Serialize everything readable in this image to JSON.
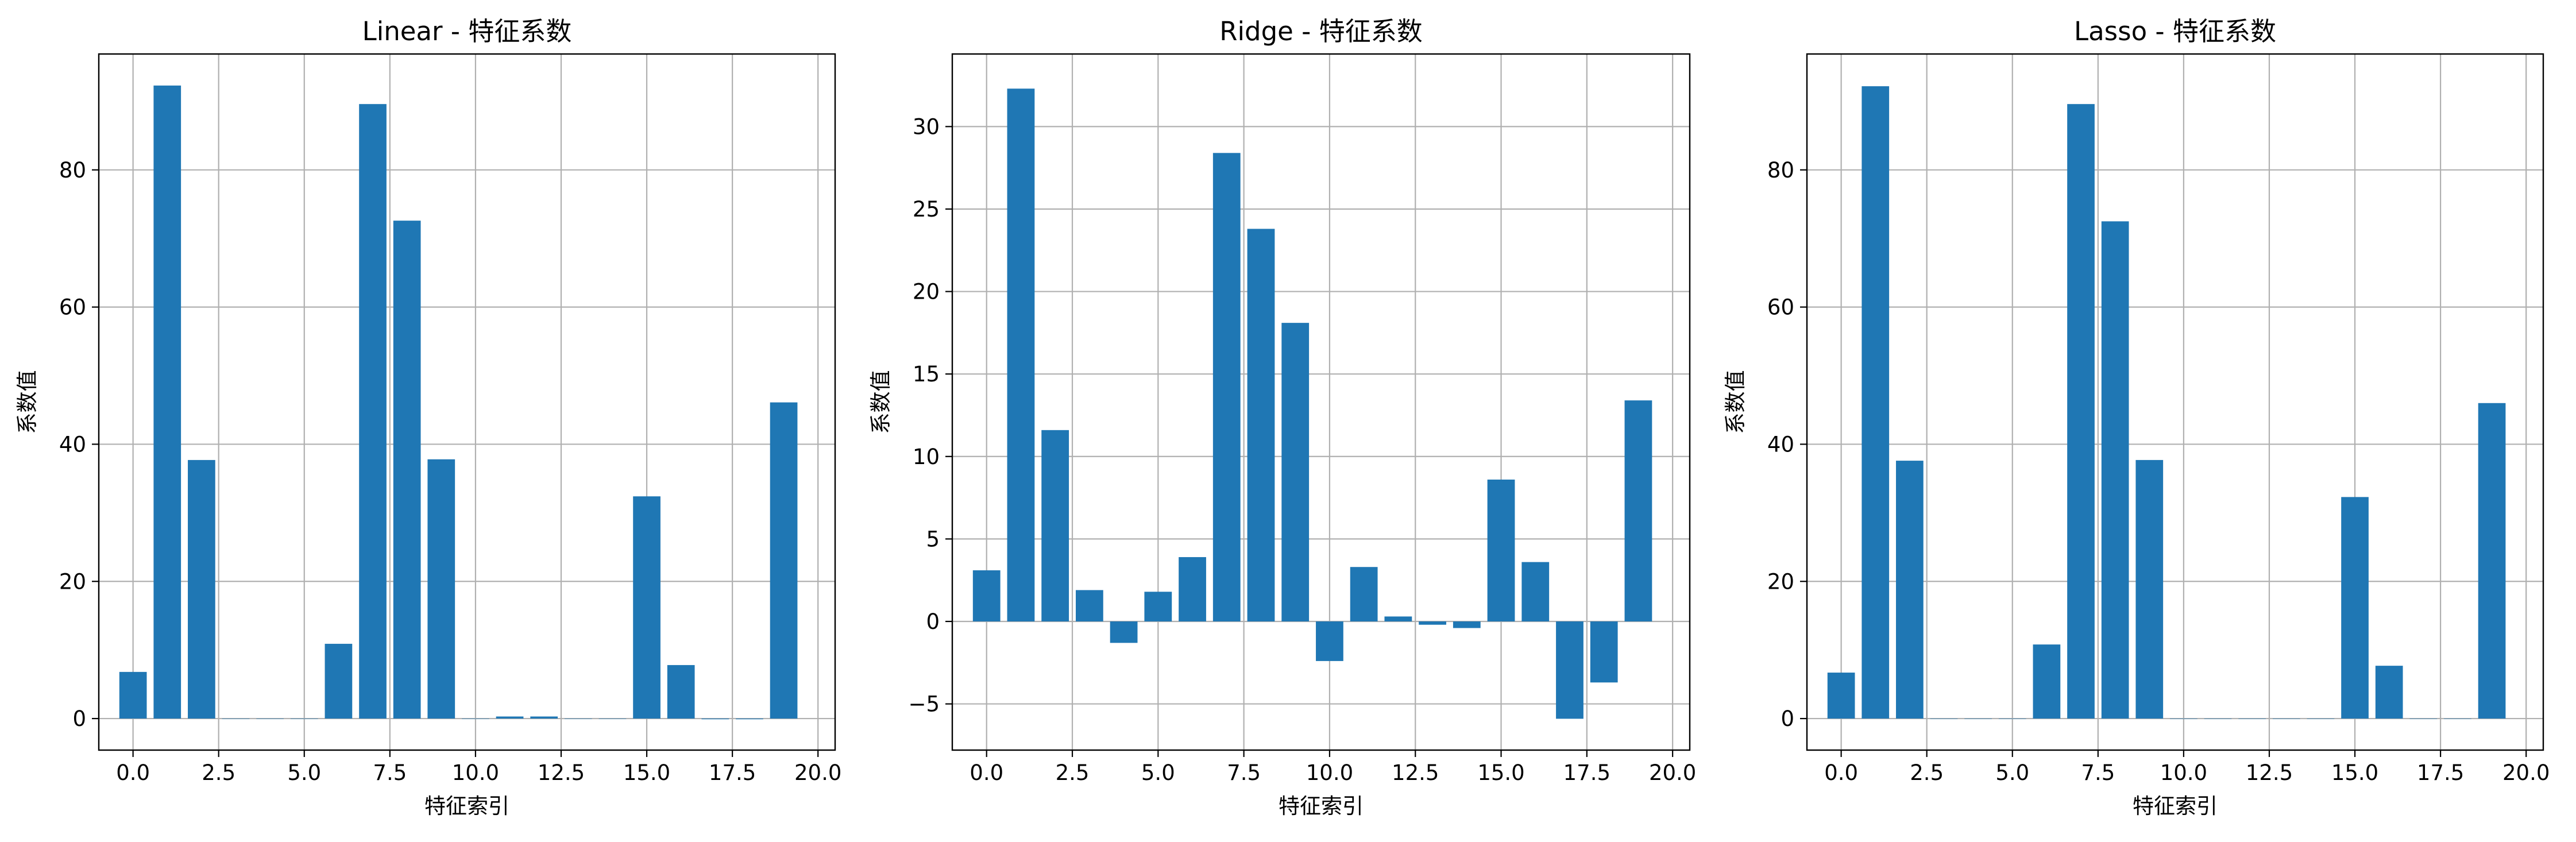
{
  "colors": {
    "bar": "#1f77b4",
    "grid": "#b0b0b0",
    "axes": "#000000",
    "background": "#ffffff"
  },
  "chart_data": [
    {
      "type": "bar",
      "title": "Linear - 特征系数",
      "xlabel": "特征索引",
      "ylabel": "系数值",
      "grid": true,
      "x": [
        0,
        1,
        2,
        3,
        4,
        5,
        6,
        7,
        8,
        9,
        10,
        11,
        12,
        13,
        14,
        15,
        16,
        17,
        18,
        19
      ],
      "values": [
        6.8,
        92.3,
        37.7,
        0,
        0,
        0,
        10.9,
        89.6,
        72.6,
        37.8,
        0,
        0.3,
        0.3,
        0,
        0,
        32.4,
        7.8,
        -0.1,
        -0.1,
        46.1
      ],
      "xlim": [
        -1.0,
        20.5
      ],
      "ylim": [
        -4.6,
        96.9
      ],
      "xticks": [
        0,
        2.5,
        5,
        7.5,
        10,
        12.5,
        15,
        17.5,
        20
      ],
      "xtick_labels": [
        "0.0",
        "2.5",
        "5.0",
        "7.5",
        "10.0",
        "12.5",
        "15.0",
        "17.5",
        "20.0"
      ],
      "yticks": [
        0,
        20,
        40,
        60,
        80
      ],
      "ytick_labels": [
        "0",
        "20",
        "40",
        "60",
        "80"
      ]
    },
    {
      "type": "bar",
      "title": "Ridge - 特征系数",
      "xlabel": "特征索引",
      "ylabel": "系数值",
      "grid": true,
      "x": [
        0,
        1,
        2,
        3,
        4,
        5,
        6,
        7,
        8,
        9,
        10,
        11,
        12,
        13,
        14,
        15,
        16,
        17,
        18,
        19
      ],
      "values": [
        3.1,
        32.3,
        11.6,
        1.9,
        -1.3,
        1.8,
        3.9,
        28.4,
        23.8,
        18.1,
        -2.4,
        3.3,
        0.3,
        -0.2,
        -0.4,
        8.6,
        3.6,
        -5.9,
        -3.7,
        13.4
      ],
      "xlim": [
        -1.0,
        20.5
      ],
      "ylim": [
        -7.8,
        34.4
      ],
      "xticks": [
        0,
        2.5,
        5,
        7.5,
        10,
        12.5,
        15,
        17.5,
        20
      ],
      "xtick_labels": [
        "0.0",
        "2.5",
        "5.0",
        "7.5",
        "10.0",
        "12.5",
        "15.0",
        "17.5",
        "20.0"
      ],
      "yticks": [
        -5,
        0,
        5,
        10,
        15,
        20,
        25,
        30
      ],
      "ytick_labels": [
        "−5",
        "0",
        "5",
        "10",
        "15",
        "20",
        "25",
        "30"
      ]
    },
    {
      "type": "bar",
      "title": "Lasso - 特征系数",
      "xlabel": "特征索引",
      "ylabel": "系数值",
      "grid": true,
      "x": [
        0,
        1,
        2,
        3,
        4,
        5,
        6,
        7,
        8,
        9,
        10,
        11,
        12,
        13,
        14,
        15,
        16,
        17,
        18,
        19
      ],
      "values": [
        6.7,
        92.2,
        37.6,
        0,
        0,
        0,
        10.8,
        89.6,
        72.5,
        37.7,
        0,
        0,
        0,
        0,
        0,
        32.3,
        7.7,
        0,
        0,
        46.0
      ],
      "xlim": [
        -1.0,
        20.5
      ],
      "ylim": [
        -4.6,
        96.9
      ],
      "xticks": [
        0,
        2.5,
        5,
        7.5,
        10,
        12.5,
        15,
        17.5,
        20
      ],
      "xtick_labels": [
        "0.0",
        "2.5",
        "5.0",
        "7.5",
        "10.0",
        "12.5",
        "15.0",
        "17.5",
        "20.0"
      ],
      "yticks": [
        0,
        20,
        40,
        60,
        80
      ],
      "ytick_labels": [
        "0",
        "20",
        "40",
        "60",
        "80"
      ]
    }
  ]
}
